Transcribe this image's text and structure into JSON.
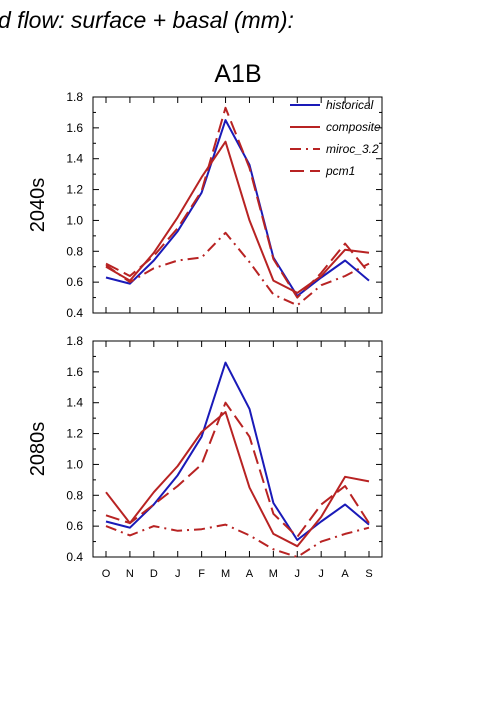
{
  "title": "d flow: surface + basal (mm):",
  "scenario": "A1B",
  "colors": {
    "historical": "#1a1ab8",
    "model": "#b82323"
  },
  "chart_data": [
    {
      "type": "line",
      "row_label": "2040s",
      "xlabel": "",
      "ylabel": "2040s",
      "ylim": [
        0.4,
        1.8
      ],
      "yticks": [
        "0.4",
        "0.6",
        "0.8",
        "1.0",
        "1.2",
        "1.4",
        "1.6",
        "1.8"
      ],
      "categories": [
        "O",
        "N",
        "D",
        "J",
        "F",
        "M",
        "A",
        "M",
        "J",
        "J",
        "A",
        "S"
      ],
      "grid": false,
      "legend_position": "top-right",
      "series": [
        {
          "name": "historical",
          "dash": "solid",
          "color": "#1a1ab8",
          "values": [
            0.63,
            0.59,
            0.74,
            0.93,
            1.18,
            1.65,
            1.36,
            0.76,
            0.51,
            0.63,
            0.74,
            0.61
          ]
        },
        {
          "name": "composite",
          "dash": "solid",
          "color": "#b82323",
          "values": [
            0.7,
            0.61,
            0.79,
            1.02,
            1.28,
            1.51,
            1.0,
            0.61,
            0.53,
            0.64,
            0.81,
            0.79
          ]
        },
        {
          "name": "miroc_3.2",
          "dash": "dashdot",
          "color": "#b82323",
          "values": [
            0.71,
            0.6,
            0.69,
            0.74,
            0.76,
            0.92,
            0.73,
            0.52,
            0.45,
            0.58,
            0.64,
            0.72
          ]
        },
        {
          "name": "pcm1",
          "dash": "dash",
          "color": "#b82323",
          "values": [
            0.72,
            0.64,
            0.77,
            0.95,
            1.19,
            1.73,
            1.34,
            0.75,
            0.5,
            0.66,
            0.85,
            0.66
          ]
        }
      ]
    },
    {
      "type": "line",
      "row_label": "2080s",
      "xlabel": "",
      "ylabel": "2080s",
      "ylim": [
        0.4,
        1.8
      ],
      "yticks": [
        "0.4",
        "0.6",
        "0.8",
        "1.0",
        "1.2",
        "1.4",
        "1.6",
        "1.8"
      ],
      "categories": [
        "O",
        "N",
        "D",
        "J",
        "F",
        "M",
        "A",
        "M",
        "J",
        "J",
        "A",
        "S"
      ],
      "grid": false,
      "series": [
        {
          "name": "historical",
          "dash": "solid",
          "color": "#1a1ab8",
          "values": [
            0.63,
            0.59,
            0.74,
            0.93,
            1.18,
            1.66,
            1.36,
            0.75,
            0.51,
            0.63,
            0.74,
            0.61
          ]
        },
        {
          "name": "composite",
          "dash": "solid",
          "color": "#b82323",
          "values": [
            0.82,
            0.62,
            0.82,
            0.99,
            1.21,
            1.34,
            0.85,
            0.55,
            0.47,
            0.66,
            0.92,
            0.89
          ]
        },
        {
          "name": "miroc_3.2",
          "dash": "dashdot",
          "color": "#b82323",
          "values": [
            0.6,
            0.54,
            0.6,
            0.57,
            0.58,
            0.61,
            0.54,
            0.45,
            0.4,
            0.5,
            0.55,
            0.59
          ]
        },
        {
          "name": "pcm1",
          "dash": "dash",
          "color": "#b82323",
          "values": [
            0.67,
            0.62,
            0.74,
            0.86,
            1.0,
            1.4,
            1.18,
            0.68,
            0.53,
            0.74,
            0.86,
            0.62
          ]
        }
      ]
    }
  ]
}
